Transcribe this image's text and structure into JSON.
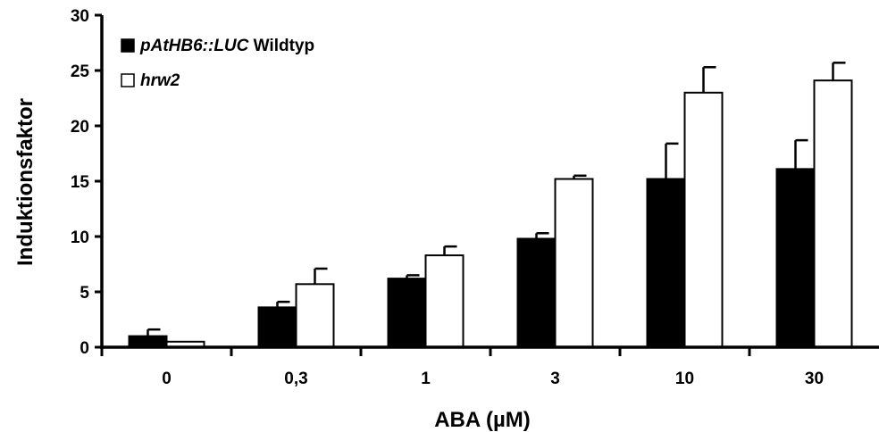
{
  "chart_data": {
    "type": "bar",
    "xlabel": "ABA (µM)",
    "ylabel": "Induktionsfaktor",
    "ylim": [
      0,
      30
    ],
    "yticks": [
      0,
      5,
      10,
      15,
      20,
      25,
      30
    ],
    "categories": [
      "0",
      "0,3",
      "1",
      "3",
      "10",
      "30"
    ],
    "legend_position": "top-left",
    "grid": false,
    "series": [
      {
        "name_italic": "pAtHB6::LUC",
        "name_plain": " Wildtyp",
        "color": "#000000",
        "values": [
          1.0,
          3.6,
          6.2,
          9.8,
          15.2,
          16.1
        ],
        "errors": [
          0.6,
          0.5,
          0.3,
          0.5,
          3.2,
          2.6
        ]
      },
      {
        "name_italic": "hrw2",
        "name_plain": "",
        "color": "#ffffff",
        "values": [
          0.5,
          5.7,
          8.3,
          15.2,
          23.0,
          24.1
        ],
        "errors": [
          0.0,
          1.4,
          0.8,
          0.3,
          2.3,
          1.6
        ]
      }
    ]
  }
}
